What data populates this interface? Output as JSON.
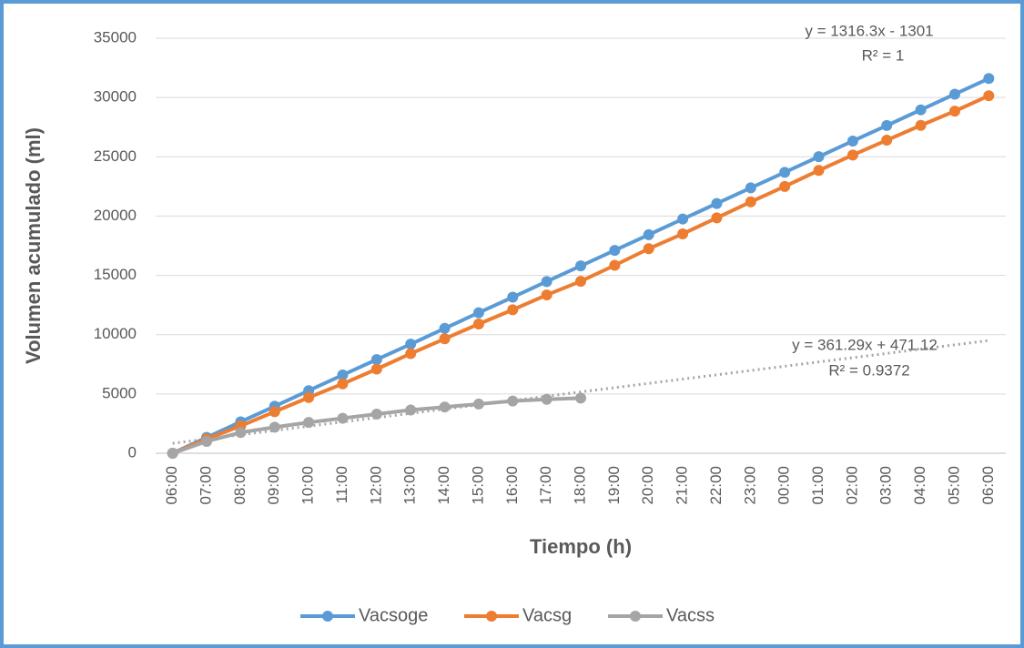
{
  "chart_data": {
    "type": "line",
    "x_label": "Tiempo (h)",
    "y_label": "Volumen acumulado (ml)",
    "categories": [
      "06:00",
      "07:00",
      "08:00",
      "09:00",
      "10:00",
      "11:00",
      "12:00",
      "13:00",
      "14:00",
      "15:00",
      "16:00",
      "17:00",
      "18:00",
      "19:00",
      "20:00",
      "21:00",
      "22:00",
      "23:00",
      "00:00",
      "01:00",
      "02:00",
      "03:00",
      "04:00",
      "05:00",
      "06:00"
    ],
    "series": [
      {
        "name": "Vacsoge",
        "color": "#5b9bd5",
        "values": [
          0,
          1330,
          2650,
          3960,
          5280,
          6600,
          7900,
          9200,
          10530,
          11850,
          13160,
          14480,
          15800,
          17110,
          18430,
          19750,
          21060,
          22380,
          23690,
          25010,
          26330,
          27640,
          28960,
          30280,
          31600
        ],
        "trendline": {
          "equation": "y = 1316.3x - 1301",
          "r2": "R² = 1",
          "slope": 1316.3,
          "intercept": -1301
        }
      },
      {
        "name": "Vacsg",
        "color": "#ed7d31",
        "values": [
          0,
          1200,
          2300,
          3500,
          4700,
          5850,
          7100,
          8400,
          9650,
          10900,
          12100,
          13350,
          14500,
          15850,
          17250,
          18500,
          19850,
          21200,
          22500,
          23850,
          25150,
          26400,
          27650,
          28850,
          30150
        ]
      },
      {
        "name": "Vacss",
        "color": "#a5a5a5",
        "values": [
          0,
          1000,
          1750,
          2200,
          2600,
          2950,
          3300,
          3650,
          3900,
          4150,
          4400,
          4550,
          4650,
          null,
          null,
          null,
          null,
          null,
          null,
          null,
          null,
          null,
          null,
          null,
          null
        ],
        "trendline": {
          "equation": "y = 361.29x + 471.12",
          "r2": "R² = 0.9372",
          "slope": 361.29,
          "intercept": 471.12
        }
      }
    ],
    "ylim": [
      0,
      35000
    ],
    "yticks": [
      0,
      5000,
      10000,
      15000,
      20000,
      25000,
      30000,
      35000
    ],
    "grid": true,
    "legend": "bottom"
  }
}
